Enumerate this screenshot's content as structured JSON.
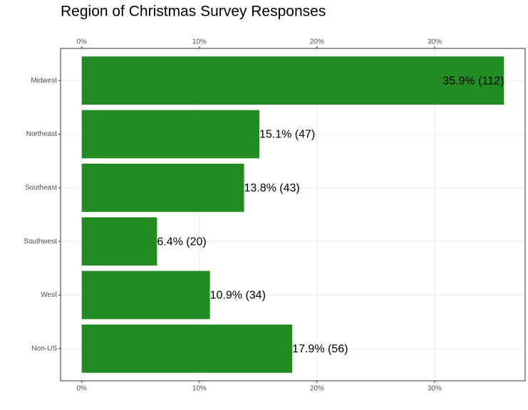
{
  "chart_data": {
    "type": "bar",
    "orientation": "horizontal",
    "title": "Region of Christmas Survey Responses",
    "categories": [
      "Midwest",
      "Northeast",
      "Southeast",
      "Southwest",
      "West",
      "Non-US"
    ],
    "values": [
      35.9,
      15.1,
      13.8,
      6.4,
      10.9,
      17.9
    ],
    "value_labels": [
      "35.9% (112)",
      "15.1% (47)",
      "13.8% (43)",
      "6.4% (20)",
      "10.9% (34)",
      "17.9% (56)"
    ],
    "color": "#228b22",
    "xlim": [
      -1.8,
      37.7
    ],
    "xticks": [
      {
        "value": 0,
        "label": "0%"
      },
      {
        "value": 10,
        "label": "10%"
      },
      {
        "value": 20,
        "label": "20%"
      },
      {
        "value": 30,
        "label": "30%"
      }
    ],
    "grid": true
  }
}
